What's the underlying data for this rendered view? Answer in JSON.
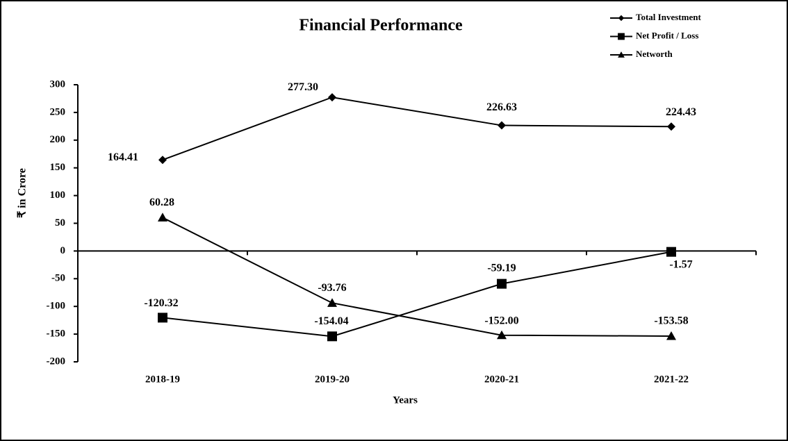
{
  "chart_data": {
    "type": "line",
    "title": "Financial Performance",
    "xlabel": "Years",
    "ylabel": "₹ in Crore",
    "categories": [
      "2018-19",
      "2019-20",
      "2020-21",
      "2021-22"
    ],
    "series": [
      {
        "name": "Total Investment",
        "color": "#000000",
        "marker": "diamond",
        "values": [
          164.41,
          277.3,
          226.63,
          224.43
        ],
        "value_labels": [
          "164.41",
          "277.30",
          "226.63",
          "224.43"
        ]
      },
      {
        "name": "Net Profit / Loss",
        "color": "#000000",
        "marker": "square",
        "values": [
          -120.32,
          -154.04,
          -59.19,
          -1.57
        ],
        "value_labels": [
          "-120.32",
          "-154.04",
          "-59.19",
          "-1.57"
        ]
      },
      {
        "name": "Networth",
        "color": "#000000",
        "marker": "triangle",
        "values": [
          60.28,
          -93.76,
          -152.0,
          -153.58
        ],
        "value_labels": [
          "60.28",
          "-93.76",
          "-152.00",
          "-153.58"
        ]
      }
    ],
    "ylim": [
      -200,
      300
    ],
    "yticks": [
      -200,
      -150,
      -100,
      -50,
      0,
      50,
      100,
      150,
      200,
      250,
      300
    ],
    "grid": false,
    "legend": "top-right"
  }
}
